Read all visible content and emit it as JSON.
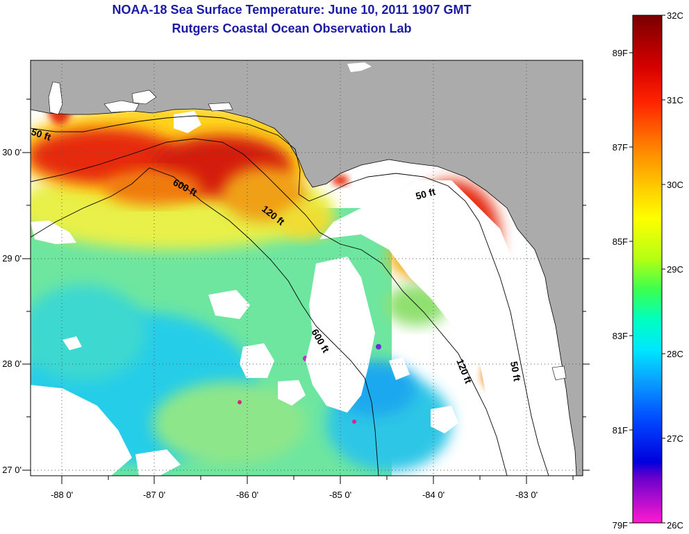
{
  "header": {
    "title": "NOAA-18 Sea Surface Temperature:  June 10, 2011 1907 GMT",
    "subtitle": "Rutgers Coastal Ocean Observation Lab"
  },
  "map": {
    "lon_labels": [
      "-88 0'",
      "-87 0'",
      "-86 0'",
      "-85 0'",
      "-84 0'",
      "-83 0'"
    ],
    "lat_labels": [
      "30 0'",
      "29 0'",
      "28 0'",
      "27 0'"
    ],
    "contour_labels": [
      "50 ft",
      "600 ft",
      "120 ft",
      "50 ft",
      "600 ft",
      "120 ft",
      "50 ft"
    ],
    "colors": {
      "land": "#ababab",
      "cloud": "#ffffff"
    }
  },
  "colorbar": {
    "celsius": [
      "32C",
      "31C",
      "30C",
      "29C",
      "28C",
      "27C",
      "26C"
    ],
    "fahrenheit": [
      "89F",
      "87F",
      "85F",
      "83F",
      "81F",
      "79F"
    ]
  }
}
